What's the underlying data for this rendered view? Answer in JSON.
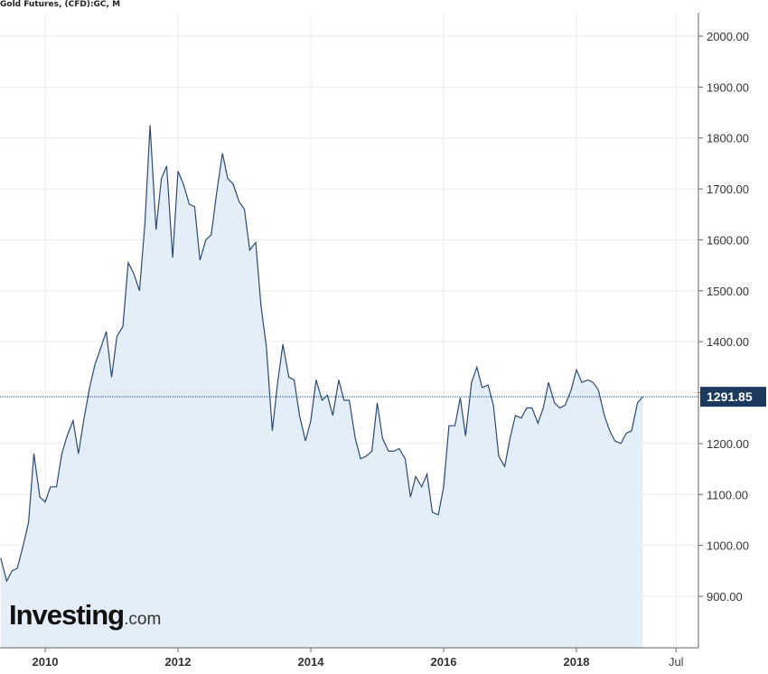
{
  "title": "Gold Futures, (CFD):GC, M",
  "watermark": {
    "brand": "Investing",
    "domain": ".com"
  },
  "colors": {
    "line": "#2c4a70",
    "area_fill": "#e4eef9",
    "grid": "#ececec",
    "axis": "#666666",
    "current_line": "#2c4a70",
    "price_tag_bg": "#1c3a5e"
  },
  "chart_data": {
    "type": "area",
    "title": "Gold Futures, (CFD):GC, M",
    "xlabel": "",
    "ylabel": "",
    "ylim": [
      800,
      2030
    ],
    "y_ticks": [
      900,
      1000,
      1100,
      1200,
      1300,
      1400,
      1500,
      1600,
      1700,
      1800,
      1900,
      2000
    ],
    "y_tick_labels": [
      "900.00",
      "1000.00",
      "1100.00",
      "1200.00",
      "1300.00",
      "1400.00",
      "1500.00",
      "1600.00",
      "1700.00",
      "1800.00",
      "1900.00",
      "2000.00"
    ],
    "x_ticks": [
      {
        "label": "2010",
        "x": 2010.0
      },
      {
        "label": "2012",
        "x": 2012.0
      },
      {
        "label": "2014",
        "x": 2014.0
      },
      {
        "label": "2016",
        "x": 2016.0
      },
      {
        "label": "2018",
        "x": 2018.0
      },
      {
        "label": "Jul",
        "x": 2019.5
      }
    ],
    "grid": true,
    "current_price": 1291.85,
    "current_price_label": "1291.85",
    "series": [
      {
        "values": [
          [
            2009.33,
            975
          ],
          [
            2009.42,
            930
          ],
          [
            2009.5,
            950
          ],
          [
            2009.58,
            955
          ],
          [
            2009.67,
            1000
          ],
          [
            2009.75,
            1045
          ],
          [
            2009.83,
            1180
          ],
          [
            2009.92,
            1095
          ],
          [
            2010.0,
            1085
          ],
          [
            2010.08,
            1115
          ],
          [
            2010.17,
            1115
          ],
          [
            2010.25,
            1180
          ],
          [
            2010.33,
            1215
          ],
          [
            2010.42,
            1245
          ],
          [
            2010.5,
            1180
          ],
          [
            2010.58,
            1245
          ],
          [
            2010.67,
            1310
          ],
          [
            2010.75,
            1355
          ],
          [
            2010.83,
            1385
          ],
          [
            2010.92,
            1420
          ],
          [
            2011.0,
            1330
          ],
          [
            2011.08,
            1410
          ],
          [
            2011.17,
            1430
          ],
          [
            2011.25,
            1555
          ],
          [
            2011.33,
            1535
          ],
          [
            2011.42,
            1500
          ],
          [
            2011.5,
            1630
          ],
          [
            2011.58,
            1825
          ],
          [
            2011.67,
            1620
          ],
          [
            2011.75,
            1720
          ],
          [
            2011.83,
            1745
          ],
          [
            2011.92,
            1565
          ],
          [
            2012.0,
            1735
          ],
          [
            2012.08,
            1710
          ],
          [
            2012.17,
            1670
          ],
          [
            2012.25,
            1665
          ],
          [
            2012.33,
            1560
          ],
          [
            2012.42,
            1600
          ],
          [
            2012.5,
            1610
          ],
          [
            2012.58,
            1690
          ],
          [
            2012.67,
            1770
          ],
          [
            2012.75,
            1720
          ],
          [
            2012.83,
            1710
          ],
          [
            2012.92,
            1675
          ],
          [
            2013.0,
            1660
          ],
          [
            2013.08,
            1580
          ],
          [
            2013.17,
            1595
          ],
          [
            2013.25,
            1470
          ],
          [
            2013.33,
            1390
          ],
          [
            2013.42,
            1225
          ],
          [
            2013.5,
            1320
          ],
          [
            2013.58,
            1395
          ],
          [
            2013.67,
            1330
          ],
          [
            2013.75,
            1325
          ],
          [
            2013.83,
            1255
          ],
          [
            2013.92,
            1205
          ],
          [
            2014.0,
            1245
          ],
          [
            2014.08,
            1325
          ],
          [
            2014.17,
            1285
          ],
          [
            2014.25,
            1295
          ],
          [
            2014.33,
            1255
          ],
          [
            2014.42,
            1325
          ],
          [
            2014.5,
            1285
          ],
          [
            2014.58,
            1285
          ],
          [
            2014.67,
            1210
          ],
          [
            2014.75,
            1170
          ],
          [
            2014.83,
            1175
          ],
          [
            2014.92,
            1185
          ],
          [
            2015.0,
            1280
          ],
          [
            2015.08,
            1210
          ],
          [
            2015.17,
            1185
          ],
          [
            2015.25,
            1185
          ],
          [
            2015.33,
            1190
          ],
          [
            2015.42,
            1170
          ],
          [
            2015.5,
            1095
          ],
          [
            2015.58,
            1135
          ],
          [
            2015.67,
            1115
          ],
          [
            2015.75,
            1140
          ],
          [
            2015.83,
            1065
          ],
          [
            2015.92,
            1060
          ],
          [
            2016.0,
            1115
          ],
          [
            2016.08,
            1235
          ],
          [
            2016.17,
            1235
          ],
          [
            2016.25,
            1290
          ],
          [
            2016.33,
            1215
          ],
          [
            2016.42,
            1320
          ],
          [
            2016.5,
            1350
          ],
          [
            2016.58,
            1310
          ],
          [
            2016.67,
            1315
          ],
          [
            2016.75,
            1275
          ],
          [
            2016.83,
            1175
          ],
          [
            2016.92,
            1155
          ],
          [
            2017.0,
            1210
          ],
          [
            2017.08,
            1255
          ],
          [
            2017.17,
            1250
          ],
          [
            2017.25,
            1270
          ],
          [
            2017.33,
            1270
          ],
          [
            2017.42,
            1240
          ],
          [
            2017.5,
            1270
          ],
          [
            2017.58,
            1320
          ],
          [
            2017.67,
            1280
          ],
          [
            2017.75,
            1270
          ],
          [
            2017.83,
            1275
          ],
          [
            2017.92,
            1305
          ],
          [
            2018.0,
            1345
          ],
          [
            2018.08,
            1320
          ],
          [
            2018.17,
            1325
          ],
          [
            2018.25,
            1320
          ],
          [
            2018.33,
            1305
          ],
          [
            2018.42,
            1255
          ],
          [
            2018.5,
            1225
          ],
          [
            2018.58,
            1205
          ],
          [
            2018.67,
            1200
          ],
          [
            2018.75,
            1220
          ],
          [
            2018.83,
            1225
          ],
          [
            2018.92,
            1280
          ],
          [
            2019.0,
            1291.85
          ]
        ]
      }
    ]
  }
}
